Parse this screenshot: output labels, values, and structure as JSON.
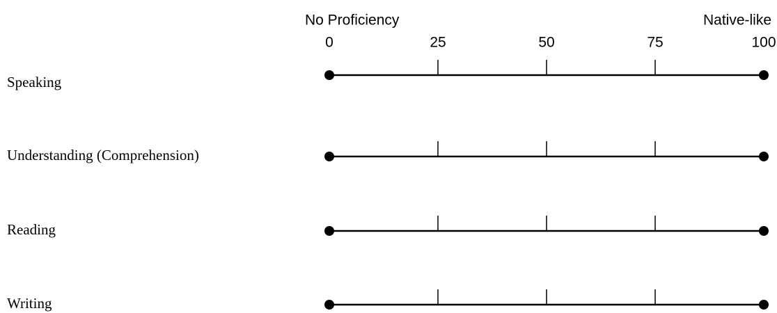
{
  "scale": {
    "min_label": "No Proficiency",
    "max_label": "Native-like",
    "ticks": [
      0,
      25,
      50,
      75,
      100
    ]
  },
  "rows": [
    {
      "label": "Speaking"
    },
    {
      "label": "Understanding  (Comprehension)"
    },
    {
      "label": "Reading"
    },
    {
      "label": "Writing"
    }
  ]
}
